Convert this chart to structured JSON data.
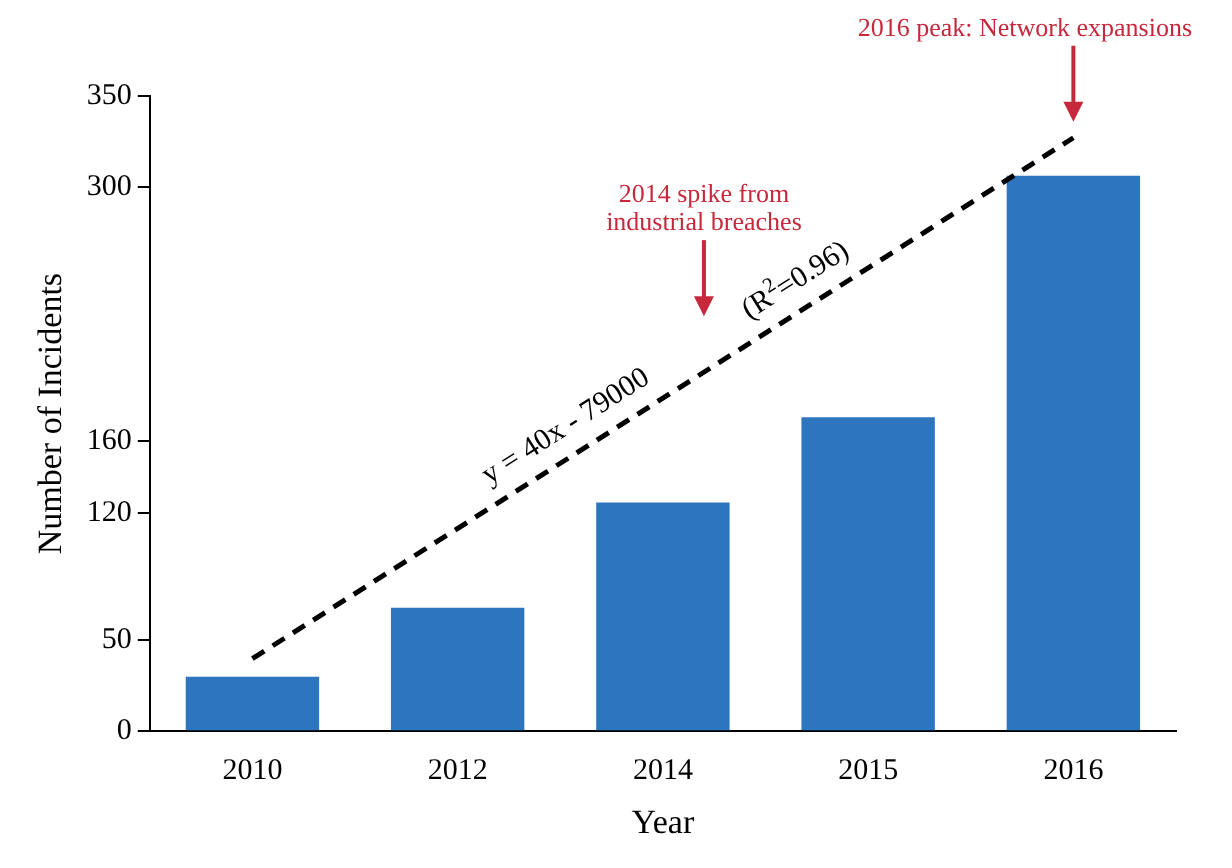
{
  "chart_data": {
    "type": "bar",
    "xlabel": "Year",
    "ylabel": "Number of Incidents",
    "categories": [
      "2010",
      "2012",
      "2014",
      "2015",
      "2016"
    ],
    "series": [
      {
        "color": "#2e75c0",
        "values": [
          30,
          68,
          126,
          173,
          306
        ]
      },
      {
        "type": "line",
        "color": "#000000",
        "line_style": "dashed",
        "marker": "none",
        "values": [
          40,
          null,
          null,
          null,
          327
        ]
      }
    ],
    "ylim": [
      0,
      350
    ],
    "yticks": [
      0,
      50,
      120,
      160,
      300,
      350
    ],
    "grid": false,
    "legend": false,
    "annotations": [
      "y = 40x - 79000",
      "(R$^{2}$=0.96)",
      "2014 spike from industrial breaches",
      "2016 peak: Network expansions"
    ]
  }
}
